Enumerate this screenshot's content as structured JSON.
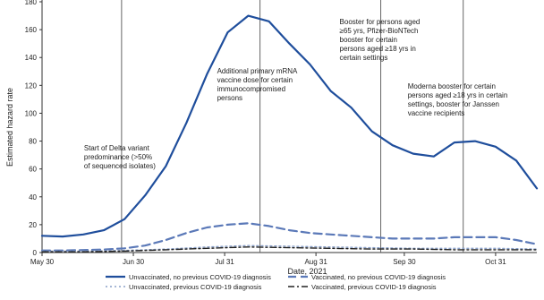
{
  "chart_data": {
    "type": "line",
    "xlabel": "Date, 2021",
    "ylabel": "Estimated hazard rate",
    "ylim": [
      0,
      180
    ],
    "yticks": [
      0,
      20,
      40,
      60,
      80,
      100,
      120,
      140,
      160,
      180
    ],
    "ytick_labels": [
      "0",
      "20",
      "40",
      "60",
      "80",
      "100",
      "120",
      "140",
      "160",
      "180"
    ],
    "x_ticks": [
      {
        "date": "2021-05-30",
        "label": "May 30"
      },
      {
        "date": "2021-06-30",
        "label": "Jun 30"
      },
      {
        "date": "2021-07-31",
        "label": "Jul 31"
      },
      {
        "date": "2021-08-31",
        "label": "Aug 31"
      },
      {
        "date": "2021-09-30",
        "label": "Sep 30"
      },
      {
        "date": "2021-10-31",
        "label": "Oct 31"
      }
    ],
    "x_range": [
      "2021-05-30",
      "2021-11-14"
    ],
    "grid": false,
    "legend_placement": "bottom",
    "events": [
      {
        "date": "2021-06-26",
        "label_lines": [
          "Start of Delta variant",
          "predominance (>50%",
          "of sequenced isolates)"
        ]
      },
      {
        "date": "2021-08-12",
        "label_lines": [
          "Additional primary mRNA",
          "vaccine dose for certain",
          "immunocompromised",
          "persons"
        ]
      },
      {
        "date": "2021-09-22",
        "label_lines": [
          "Booster for persons aged",
          "≥65 yrs, Pfizer-BioNTech",
          "booster for certain",
          "persons aged ≥18 yrs in",
          "certain settings"
        ]
      },
      {
        "date": "2021-10-20",
        "label_lines": [
          "Moderna booster for certain",
          "persons aged ≥18 yrs in certain",
          "settings, booster for Janssen",
          "vaccine recipients"
        ]
      }
    ],
    "series": [
      {
        "name": "Unvaccinated, no previous COVID-19 diagnosis",
        "color": "#1f4e9c",
        "style": "solid",
        "x": [
          "2021-05-30",
          "2021-06-06",
          "2021-06-13",
          "2021-06-20",
          "2021-06-27",
          "2021-07-04",
          "2021-07-11",
          "2021-07-18",
          "2021-07-25",
          "2021-08-01",
          "2021-08-08",
          "2021-08-15",
          "2021-08-22",
          "2021-08-29",
          "2021-09-05",
          "2021-09-12",
          "2021-09-19",
          "2021-09-26",
          "2021-10-03",
          "2021-10-10",
          "2021-10-17",
          "2021-10-24",
          "2021-10-31",
          "2021-11-07",
          "2021-11-14"
        ],
        "y": [
          12,
          11.5,
          13,
          16,
          24,
          41,
          62,
          93,
          128,
          158,
          170,
          166,
          150,
          135,
          116,
          104,
          87,
          77,
          71,
          69,
          79,
          80,
          76,
          66,
          46
        ]
      },
      {
        "name": "Vaccinated, no previous COVID-19 diagnosis",
        "color": "#5b79b8",
        "style": "dash",
        "x": [
          "2021-05-30",
          "2021-06-06",
          "2021-06-13",
          "2021-06-20",
          "2021-06-27",
          "2021-07-04",
          "2021-07-11",
          "2021-07-18",
          "2021-07-25",
          "2021-08-01",
          "2021-08-08",
          "2021-08-15",
          "2021-08-22",
          "2021-08-29",
          "2021-09-05",
          "2021-09-12",
          "2021-09-19",
          "2021-09-26",
          "2021-10-03",
          "2021-10-10",
          "2021-10-17",
          "2021-10-24",
          "2021-10-31",
          "2021-11-07",
          "2021-11-14"
        ],
        "y": [
          1.5,
          1.5,
          1.8,
          2.2,
          3,
          5,
          9,
          14,
          18,
          20,
          21,
          19,
          16,
          14,
          13,
          12,
          11,
          10,
          10,
          10,
          11,
          11,
          11,
          9,
          6
        ]
      },
      {
        "name": "Unvaccinated, previous COVID-19 diagnosis",
        "color": "#8aa0c8",
        "style": "dot",
        "x": [
          "2021-05-30",
          "2021-06-13",
          "2021-06-27",
          "2021-07-11",
          "2021-07-25",
          "2021-08-08",
          "2021-08-22",
          "2021-09-05",
          "2021-09-19",
          "2021-10-03",
          "2021-10-17",
          "2021-10-31",
          "2021-11-14"
        ],
        "y": [
          1,
          1,
          1.5,
          2.5,
          4,
          5,
          4.5,
          4,
          3.5,
          3,
          3,
          3,
          2.5
        ]
      },
      {
        "name": "Vaccinated, previous COVID-19 diagnosis",
        "color": "#222222",
        "style": "dashdot",
        "x": [
          "2021-05-30",
          "2021-06-13",
          "2021-06-27",
          "2021-07-11",
          "2021-07-25",
          "2021-08-08",
          "2021-08-22",
          "2021-09-05",
          "2021-09-19",
          "2021-10-03",
          "2021-10-17",
          "2021-10-31",
          "2021-11-14"
        ],
        "y": [
          0.5,
          0.5,
          1,
          2,
          3,
          4,
          3.5,
          3,
          2.5,
          2.5,
          2,
          2,
          2
        ]
      }
    ]
  }
}
